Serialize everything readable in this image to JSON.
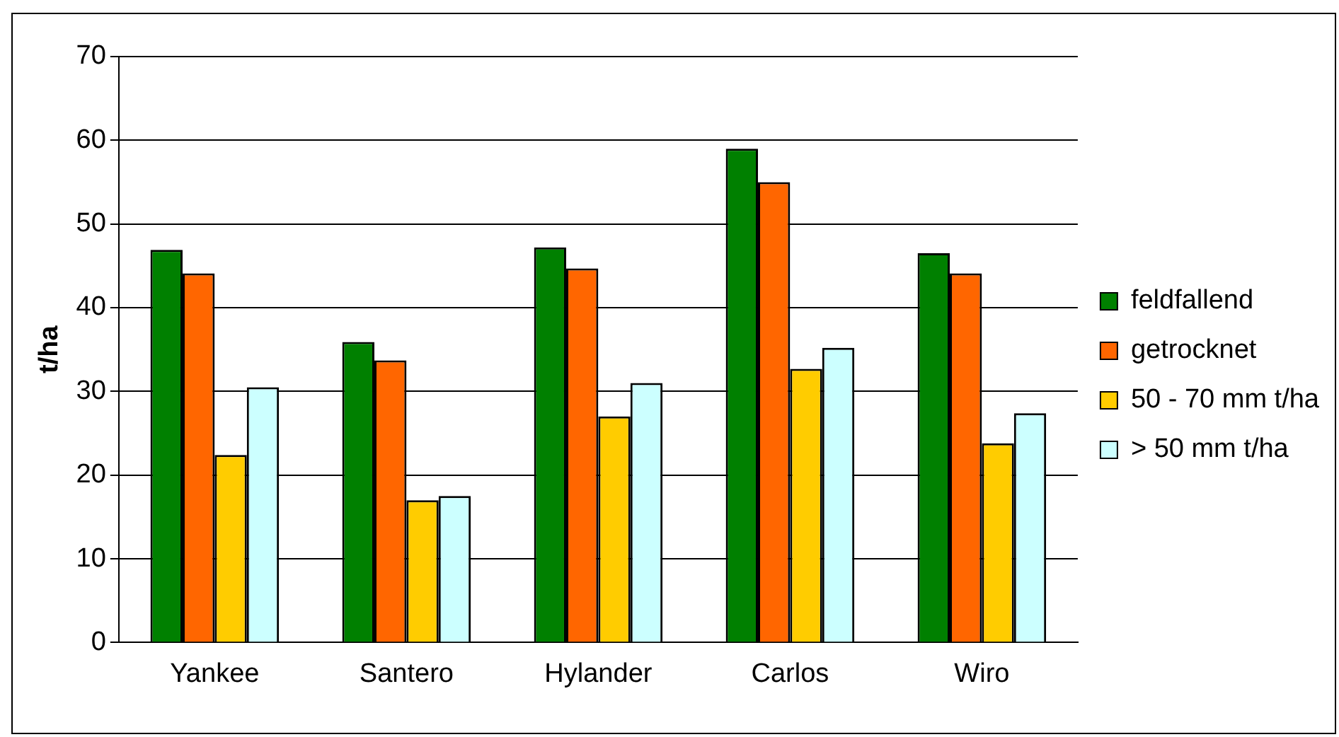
{
  "chart_data": {
    "type": "bar",
    "ylabel": "t/ha",
    "categories": [
      "Yankee",
      "Santero",
      "Hylander",
      "Carlos",
      "Wiro"
    ],
    "series": [
      {
        "name": "feldfallend",
        "color": "#008000",
        "values": [
          46.9,
          35.9,
          47.2,
          59.0,
          46.5
        ]
      },
      {
        "name": "getrocknet",
        "color": "#ff6600",
        "values": [
          44.1,
          33.7,
          44.7,
          55.0,
          44.1
        ]
      },
      {
        "name": "50 - 70 mm t/ha",
        "color": "#ffcc00",
        "values": [
          22.4,
          17.0,
          27.0,
          32.7,
          23.8
        ]
      },
      {
        "name": "> 50 mm t/ha",
        "color": "#ccffff",
        "values": [
          30.5,
          17.5,
          31.0,
          35.2,
          27.4
        ]
      }
    ],
    "ylim": [
      0,
      70
    ],
    "yticks": [
      0,
      10,
      20,
      30,
      40,
      50,
      60,
      70
    ],
    "grid": "y",
    "legend": "right"
  }
}
